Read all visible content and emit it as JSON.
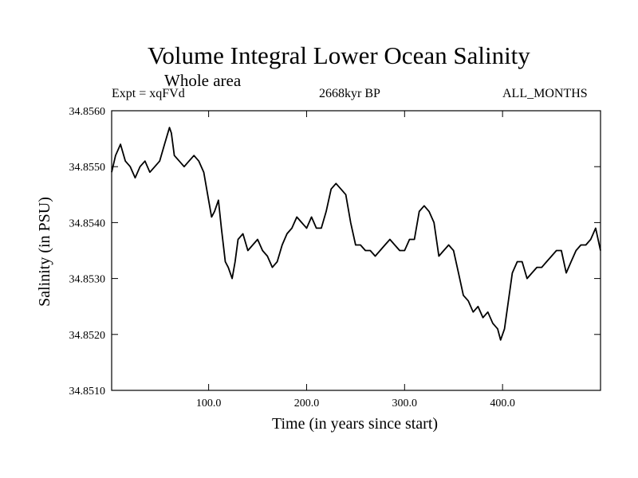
{
  "chart_data": {
    "type": "line",
    "title": "Volume Integral Lower Ocean Salinity",
    "subtitle": "Whole area",
    "header_left": "Expt = xqFVd",
    "header_center": "2668kyr BP",
    "header_right": "ALL_MONTHS",
    "xlabel": "Time (in years since start)",
    "ylabel": "Salinity (in PSU)",
    "xlim": [
      1,
      500
    ],
    "ylim": [
      34.851,
      34.856
    ],
    "xticks": [
      100,
      200,
      300,
      400
    ],
    "xtick_labels": [
      "100.0",
      "200.0",
      "300.0",
      "400.0"
    ],
    "yticks": [
      34.851,
      34.852,
      34.853,
      34.854,
      34.855,
      34.856
    ],
    "ytick_labels": [
      "34.8510",
      "34.8520",
      "34.8530",
      "34.8540",
      "34.8550",
      "34.8560"
    ],
    "series": [
      {
        "name": "Salinity",
        "x": [
          1,
          5,
          10,
          15,
          20,
          25,
          30,
          35,
          40,
          45,
          50,
          55,
          60,
          62,
          65,
          70,
          75,
          80,
          85,
          90,
          95,
          100,
          103,
          106,
          110,
          113,
          117,
          120,
          124,
          127,
          130,
          135,
          140,
          145,
          150,
          155,
          160,
          165,
          170,
          175,
          180,
          185,
          190,
          195,
          200,
          205,
          210,
          215,
          220,
          225,
          230,
          235,
          240,
          245,
          250,
          255,
          260,
          265,
          270,
          275,
          280,
          285,
          290,
          295,
          300,
          305,
          310,
          315,
          320,
          325,
          330,
          335,
          340,
          345,
          350,
          355,
          360,
          365,
          370,
          375,
          380,
          385,
          390,
          395,
          398,
          402,
          406,
          410,
          415,
          420,
          425,
          430,
          435,
          440,
          445,
          450,
          455,
          460,
          465,
          470,
          475,
          480,
          485,
          490,
          495,
          500
        ],
        "values": [
          34.8549,
          34.8552,
          34.8554,
          34.8551,
          34.855,
          34.8548,
          34.855,
          34.8551,
          34.8549,
          34.855,
          34.8551,
          34.8554,
          34.8557,
          34.8556,
          34.8552,
          34.8551,
          34.855,
          34.8551,
          34.8552,
          34.8551,
          34.8549,
          34.8544,
          34.8541,
          34.8542,
          34.8544,
          34.8539,
          34.8533,
          34.8532,
          34.853,
          34.8533,
          34.8537,
          34.8538,
          34.8535,
          34.8536,
          34.8537,
          34.8535,
          34.8534,
          34.8532,
          34.8533,
          34.8536,
          34.8538,
          34.8539,
          34.8541,
          34.854,
          34.8539,
          34.8541,
          34.8539,
          34.8539,
          34.8542,
          34.8546,
          34.8547,
          34.8546,
          34.8545,
          34.854,
          34.8536,
          34.8536,
          34.8535,
          34.8535,
          34.8534,
          34.8535,
          34.8536,
          34.8537,
          34.8536,
          34.8535,
          34.8535,
          34.8537,
          34.8537,
          34.8542,
          34.8543,
          34.8542,
          34.854,
          34.8534,
          34.8535,
          34.8536,
          34.8535,
          34.8531,
          34.8527,
          34.8526,
          34.8524,
          34.8525,
          34.8523,
          34.8524,
          34.8522,
          34.8521,
          34.8519,
          34.8521,
          34.8526,
          34.8531,
          34.8533,
          34.8533,
          34.853,
          34.8531,
          34.8532,
          34.8532,
          34.8533,
          34.8534,
          34.8535,
          34.8535,
          34.8531,
          34.8533,
          34.8535,
          34.8536,
          34.8536,
          34.8537,
          34.8539,
          34.8535
        ]
      }
    ]
  }
}
